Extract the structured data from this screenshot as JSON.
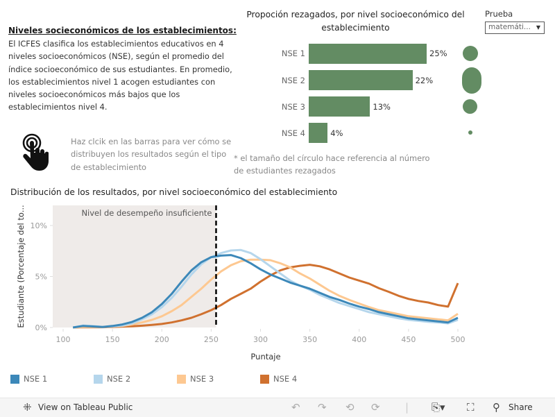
{
  "intro": {
    "title": "Niveles socieconómicos de los establecimientos:",
    "body": "El ICFES clasifica los establecimientos educativos en 4 niveles socioeconómicos (NSE), según el promedio del índice socioeconómico de sus estudiantes. En promedio, los establecimientos nivel 1 acogen estudiantes con niveles socioeconómicos más bajos que los establecimientos nivel 4."
  },
  "hint": {
    "icon": "hand-pointer-icon",
    "text": "Haz clcik en las barras para ver cómo se distribuyen los resultados según el tipo de establecimiento"
  },
  "filter": {
    "label": "Prueba",
    "selected": "matemáti...",
    "arrow": "▼"
  },
  "circle_note": "* el tamaño del círculo hace referencia al número de estudiantes rezagados",
  "colors": {
    "bar": "#638c63",
    "nse1": "#3c88b9",
    "nse2": "#b5d6ec",
    "nse3": "#fdc891",
    "nse4": "#d0712f",
    "shade": "#efebe9"
  },
  "chart_data": [
    {
      "type": "bar",
      "title": "Propoción rezagados, por nivel socioeconómico del establecimiento",
      "categories": [
        "NSE 1",
        "NSE 2",
        "NSE 3",
        "NSE 4"
      ],
      "values": [
        25,
        22,
        13,
        4
      ],
      "value_labels": [
        "25%",
        "22%",
        "13%",
        "4%"
      ],
      "circle_size_relative": [
        0.8,
        1.0,
        0.75,
        0.2
      ],
      "xlabel": "",
      "ylabel": ""
    },
    {
      "type": "line",
      "title": "Distribución de los resultados, por nivel socioeconómico del establecimiento",
      "xlabel": "Puntaje",
      "ylabel": "Estudiante (Porcentaje del to...",
      "xlim": [
        75,
        505
      ],
      "ylim": [
        0,
        12
      ],
      "x_ticks": [
        100,
        150,
        200,
        250,
        300,
        350,
        400,
        450,
        500
      ],
      "x_tick_labels": [
        "100",
        "150",
        "200",
        "250",
        "300",
        "350",
        "400",
        "450",
        "500"
      ],
      "y_ticks": [
        0,
        5,
        10
      ],
      "y_tick_labels": [
        "0%",
        "5%",
        "10%"
      ],
      "annotation": {
        "text": "Nivel de desempeño insuficiente",
        "threshold_x": 255,
        "shaded_from": 75
      },
      "x": [
        110,
        120,
        130,
        140,
        150,
        160,
        170,
        180,
        190,
        200,
        210,
        220,
        230,
        240,
        250,
        260,
        270,
        280,
        290,
        300,
        310,
        320,
        330,
        340,
        350,
        360,
        370,
        380,
        390,
        400,
        410,
        420,
        430,
        440,
        450,
        460,
        470,
        480,
        490,
        500
      ],
      "series": [
        {
          "name": "NSE 1",
          "values": [
            0,
            0.15,
            0.1,
            0.05,
            0.15,
            0.3,
            0.55,
            0.95,
            1.5,
            2.3,
            3.3,
            4.5,
            5.6,
            6.4,
            6.9,
            7.05,
            7.1,
            6.8,
            6.3,
            5.7,
            5.2,
            4.8,
            4.4,
            4.1,
            3.8,
            3.4,
            3.0,
            2.7,
            2.35,
            2.05,
            1.8,
            1.5,
            1.3,
            1.1,
            0.9,
            0.8,
            0.7,
            0.6,
            0.5,
            0.95
          ]
        },
        {
          "name": "NSE 2",
          "values": [
            0,
            0.2,
            0.15,
            0.05,
            0.1,
            0.2,
            0.4,
            0.8,
            1.3,
            2.0,
            2.9,
            4.0,
            5.2,
            6.2,
            6.9,
            7.3,
            7.55,
            7.6,
            7.3,
            6.7,
            6.0,
            5.3,
            4.6,
            4.1,
            3.7,
            3.2,
            2.8,
            2.4,
            2.1,
            1.8,
            1.5,
            1.3,
            1.1,
            0.9,
            0.75,
            0.65,
            0.55,
            0.5,
            0.4,
            0.75
          ]
        },
        {
          "name": "NSE 3",
          "values": [
            0,
            0.05,
            0.05,
            0.05,
            0.1,
            0.15,
            0.3,
            0.5,
            0.75,
            1.1,
            1.6,
            2.2,
            3.0,
            3.8,
            4.7,
            5.5,
            6.1,
            6.5,
            6.65,
            6.65,
            6.6,
            6.3,
            5.9,
            5.3,
            4.8,
            4.2,
            3.6,
            3.1,
            2.7,
            2.35,
            2.0,
            1.7,
            1.5,
            1.3,
            1.1,
            1.0,
            0.9,
            0.8,
            0.7,
            1.35
          ]
        },
        {
          "name": "NSE 4",
          "values": [
            0,
            0.02,
            0.02,
            0.03,
            0.05,
            0.08,
            0.12,
            0.18,
            0.25,
            0.35,
            0.5,
            0.7,
            0.95,
            1.3,
            1.7,
            2.2,
            2.8,
            3.3,
            3.8,
            4.5,
            5.1,
            5.6,
            5.9,
            6.05,
            6.15,
            6.0,
            5.7,
            5.3,
            4.9,
            4.6,
            4.3,
            3.85,
            3.5,
            3.1,
            2.8,
            2.6,
            2.45,
            2.2,
            2.05,
            4.35
          ]
        }
      ],
      "legend": [
        "NSE 1",
        "NSE 2",
        "NSE 3",
        "NSE 4"
      ],
      "legend_position": "bottom",
      "grid": false
    }
  ],
  "footer": {
    "view_label": "View on Tableau Public",
    "share_label": "Share",
    "icons": [
      "tableau-logo-icon",
      "undo-icon",
      "redo-icon",
      "revert-icon",
      "refresh-icon",
      "download-icon",
      "fullscreen-icon",
      "share-icon"
    ]
  }
}
